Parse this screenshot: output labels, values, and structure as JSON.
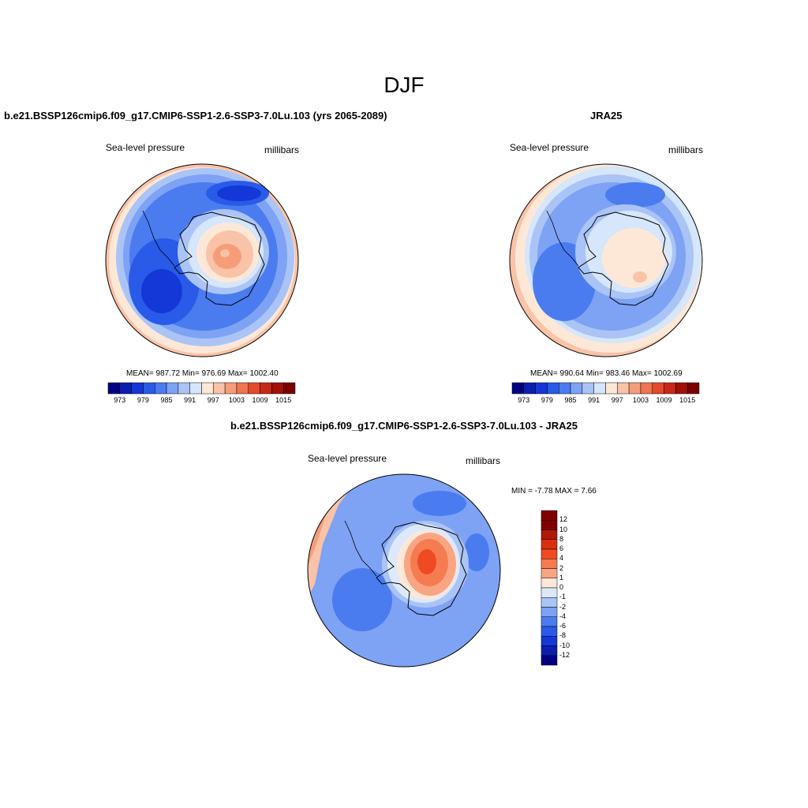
{
  "page": {
    "title": "DJF"
  },
  "panels": [
    {
      "id": "model",
      "title": "b.e21.BSSP126cmip6.f09_g17.CMIP6-SSP1-2.6-SSP3-7.0Lu.103 (yrs 2065-2089)",
      "left_label": "Sea-level pressure",
      "right_label": "millibars",
      "stats": "MEAN= 987.72  Min= 976.69  Max= 1002.40",
      "colorbar_ticks": [
        "973",
        "979",
        "985",
        "991",
        "997",
        "1003",
        "1009",
        "1015"
      ]
    },
    {
      "id": "obs",
      "title": "JRA25",
      "left_label": "Sea-level pressure",
      "right_label": "millibars",
      "stats": "MEAN= 990.64  Min= 983.46  Max= 1002.69",
      "colorbar_ticks": [
        "973",
        "979",
        "985",
        "991",
        "997",
        "1003",
        "1009",
        "1015"
      ]
    },
    {
      "id": "diff",
      "title": "b.e21.BSSP126cmip6.f09_g17.CMIP6-SSP1-2.6-SSP3-7.0Lu.103 - JRA25",
      "left_label": "Sea-level pressure",
      "right_label": "millibars",
      "stats": "MIN =  -7.78 MAX =   7.66",
      "colorbar_ticks": [
        "12",
        "10",
        "8",
        "6",
        "4",
        "2",
        "1",
        "0",
        "-1",
        "-2",
        "-4",
        "-6",
        "-8",
        "-10",
        "-12"
      ]
    }
  ],
  "colors": {
    "abs_scale": [
      "#000080",
      "#0a1fb0",
      "#1437d8",
      "#2a5ae8",
      "#4a7cf0",
      "#7ea2f4",
      "#aac4f6",
      "#d6e6fb",
      "#fde8d8",
      "#f9c3a7",
      "#f59d79",
      "#ef7650",
      "#e54a2a",
      "#c8281a",
      "#a01008",
      "#7a0000"
    ],
    "diff_scale": [
      "#800000",
      "#b01808",
      "#d8300e",
      "#f04a22",
      "#f57c50",
      "#f8a583",
      "#fde8d8",
      "#dde9fb",
      "#aac4f6",
      "#7ea2f4",
      "#4a7cf0",
      "#2a5ae8",
      "#1437d8",
      "#0a1fb0",
      "#000080"
    ]
  }
}
